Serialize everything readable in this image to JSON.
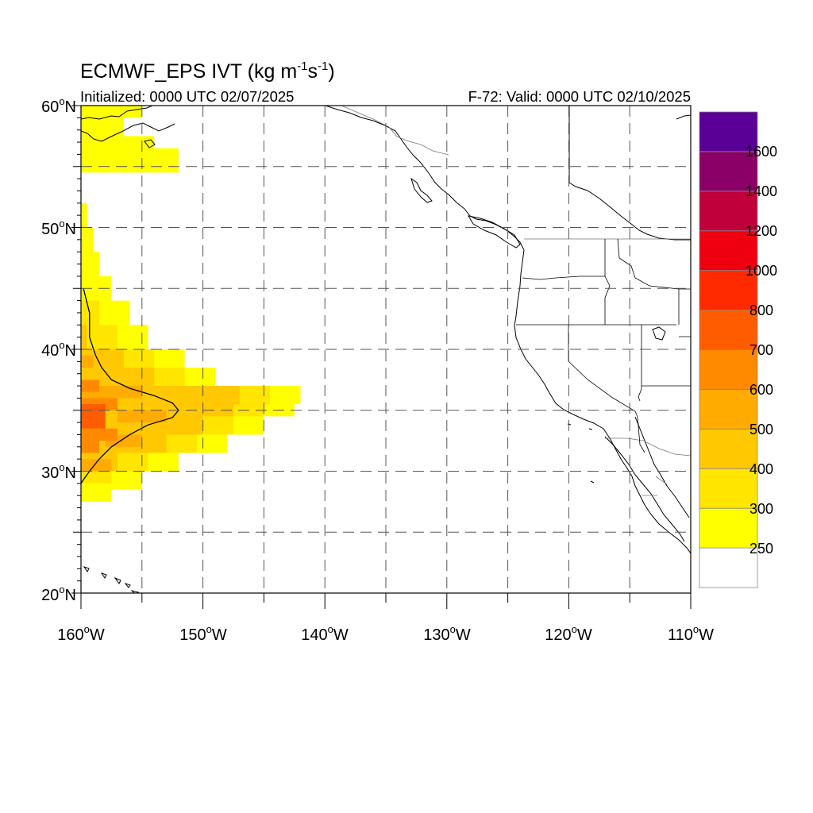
{
  "title": {
    "model": "ECMWF_EPS IVT (kg m",
    "unit_sup1": "-1",
    "unit_mid": "s",
    "unit_sup2": "-1",
    "unit_close": ")"
  },
  "subtitle_left": "Initialized: 0000 UTC 02/07/2025",
  "subtitle_right": "F-72: Valid: 0000 UTC 02/10/2025",
  "map": {
    "lon_range": [
      -160,
      -110
    ],
    "lat_range": [
      20,
      60
    ],
    "lon_labels": [
      "160",
      "150",
      "140",
      "130",
      "120",
      "110"
    ],
    "lon_label_values": [
      -160,
      -150,
      -140,
      -130,
      -120,
      -110
    ],
    "lon_suffix": "W",
    "lat_labels": [
      "20",
      "30",
      "40",
      "50",
      "60"
    ],
    "lat_label_values": [
      20,
      30,
      40,
      50,
      60
    ],
    "lat_suffix": "N",
    "degree_symbol": "o",
    "gridline_lons": [
      -155,
      -150,
      -145,
      -140,
      -135,
      -130,
      -125,
      -120,
      -115
    ],
    "gridline_lats": [
      25,
      30,
      35,
      40,
      45,
      50,
      55
    ],
    "ivt_plume": {
      "rows": [
        {
          "lat": 60.0,
          "lon_max": -155.0
        },
        {
          "lat": 59.0,
          "lon_max": -156.5
        },
        {
          "lat": 57.5,
          "lon_max": -154.0
        },
        {
          "lat": 56.5,
          "lon_max": -152.0
        },
        {
          "lat": 55.5,
          "lon_max": -152.0
        },
        {
          "lat": 52.0,
          "lon_max": -159.5
        },
        {
          "lat": 50.0,
          "lon_max": -159.0
        },
        {
          "lat": 48.0,
          "lon_max": -158.5
        },
        {
          "lat": 46.0,
          "lon_max": -157.5
        },
        {
          "lat": 44.0,
          "lon_max": -156.0
        },
        {
          "lat": 42.0,
          "lon_max": -154.5
        },
        {
          "lat": 40.0,
          "lon_max": -151.5
        },
        {
          "lat": 38.5,
          "lon_max": -149.0
        },
        {
          "lat": 37.0,
          "lon_max": -142.0
        },
        {
          "lat": 35.5,
          "lon_max": -142.5
        },
        {
          "lat": 34.5,
          "lon_max": -145.0
        },
        {
          "lat": 33.0,
          "lon_max": -148.0
        },
        {
          "lat": 31.5,
          "lon_max": -152.0
        },
        {
          "lat": 30.0,
          "lon_max": -155.0
        },
        {
          "lat": 28.5,
          "lon_max": -157.5
        },
        {
          "lat": 27.5,
          "lon_max": -160.0
        }
      ],
      "cells": [
        {
          "lat": 34.5,
          "lon_from": -160,
          "lon_to": -158.5,
          "level": 700
        },
        {
          "lat": 35.0,
          "lon_from": -160,
          "lon_to": -158.0,
          "level": 700
        },
        {
          "lat": 34.0,
          "lon_from": -160,
          "lon_to": -158.0,
          "level": 700
        },
        {
          "lat": 35.5,
          "lon_from": -160,
          "lon_to": -157.0,
          "level": 600
        },
        {
          "lat": 33.0,
          "lon_from": -160,
          "lon_to": -157.0,
          "level": 600
        },
        {
          "lat": 37.0,
          "lon_from": -160,
          "lon_to": -158.5,
          "level": 600
        },
        {
          "lat": 32.0,
          "lon_from": -160,
          "lon_to": -158.5,
          "level": 600
        },
        {
          "lat": 39.0,
          "lon_from": -160,
          "lon_to": -159.0,
          "level": 500
        },
        {
          "lat": 36.5,
          "lon_from": -160,
          "lon_to": -155.0,
          "level": 500
        },
        {
          "lat": 34.5,
          "lon_from": -157.0,
          "lon_to": -153.0,
          "level": 500
        },
        {
          "lat": 32.5,
          "lon_from": -158.0,
          "lon_to": -155.0,
          "level": 500
        },
        {
          "lat": 30.5,
          "lon_from": -160,
          "lon_to": -157.5,
          "level": 500
        }
      ],
      "contour_600": [
        [
          -159.8,
          45.0
        ],
        [
          -159.3,
          43.0
        ],
        [
          -159.3,
          41.0
        ],
        [
          -158.8,
          39.5
        ],
        [
          -158.3,
          38.5
        ],
        [
          -157.5,
          37.5
        ],
        [
          -156.0,
          36.8
        ],
        [
          -154.0,
          36.2
        ],
        [
          -152.5,
          35.6
        ],
        [
          -152.0,
          35.0
        ],
        [
          -152.5,
          34.4
        ],
        [
          -154.5,
          33.8
        ],
        [
          -156.0,
          33.0
        ],
        [
          -157.5,
          32.0
        ],
        [
          -158.5,
          31.0
        ],
        [
          -159.3,
          30.0
        ],
        [
          -159.8,
          29.3
        ],
        [
          -160.0,
          29.0
        ]
      ]
    }
  },
  "colorbar": {
    "labels": [
      "250",
      "300",
      "400",
      "500",
      "600",
      "700",
      "800",
      "1000",
      "1200",
      "1400",
      "1600"
    ],
    "colors": [
      "#ffffff",
      "#ffff00",
      "#ffe500",
      "#ffc800",
      "#ffab00",
      "#ff8a00",
      "#ff5c00",
      "#ff2a00",
      "#ee0010",
      "#c0003a",
      "#8b0066",
      "#5a0096"
    ]
  }
}
